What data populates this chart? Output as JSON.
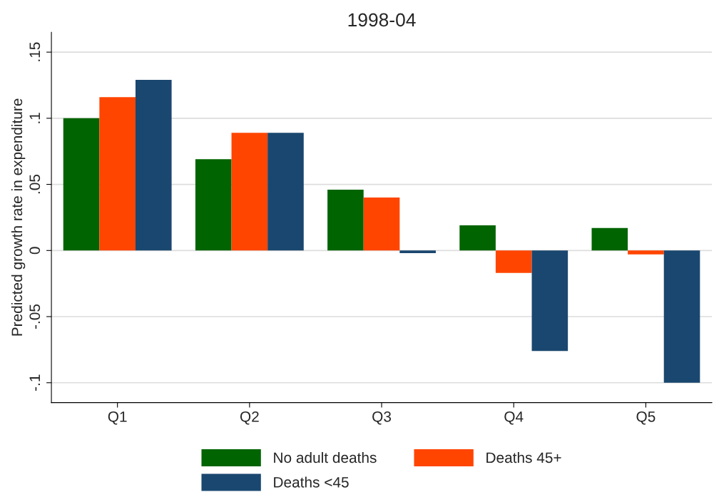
{
  "chart_data": {
    "type": "bar",
    "title": "1998-04",
    "ylabel": "Predicted growth rate in expenditure",
    "categories": [
      "Q1",
      "Q2",
      "Q3",
      "Q4",
      "Q5"
    ],
    "series": [
      {
        "name": "No adult deaths",
        "color": "#006400",
        "values": [
          0.1,
          0.069,
          0.046,
          0.019,
          0.017
        ]
      },
      {
        "name": "Deaths 45+",
        "color": "#ff4500",
        "values": [
          0.116,
          0.089,
          0.04,
          -0.017,
          -0.003
        ]
      },
      {
        "name": "Deaths <45",
        "color": "#1a476f",
        "values": [
          0.129,
          0.089,
          -0.002,
          -0.076,
          -0.1
        ]
      }
    ],
    "ylim": [
      -0.115,
      0.165
    ],
    "yticks": [
      {
        "value": -0.1,
        "label": "-.1"
      },
      {
        "value": -0.05,
        "label": "-.05"
      },
      {
        "value": 0,
        "label": "0"
      },
      {
        "value": 0.05,
        "label": ".05"
      },
      {
        "value": 0.1,
        "label": ".1"
      },
      {
        "value": 0.15,
        "label": ".15"
      }
    ],
    "grid": "y",
    "legend": "bottom"
  }
}
